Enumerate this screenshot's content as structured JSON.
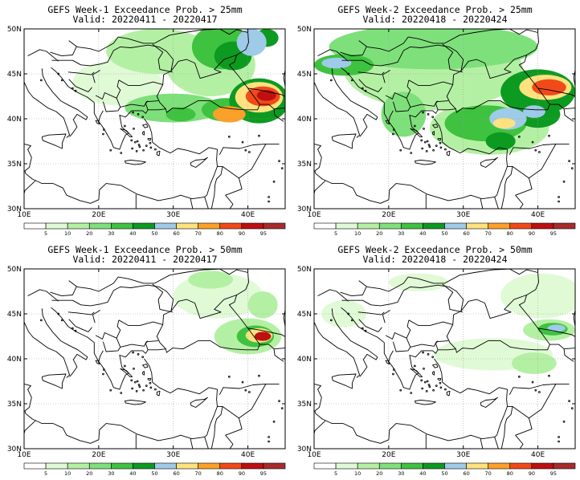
{
  "panels": [
    {
      "id": "w1-25",
      "title": "GEFS Week-1 Exceedance Prob. > 25mm",
      "valid": "Valid: 20220411 - 20220417",
      "blobs": [
        {
          "lon": 31.0,
          "lat": 40.5,
          "rx": 2.0,
          "ry": 0.8,
          "lvl": 4
        },
        {
          "lon": 30.0,
          "lat": 41.2,
          "rx": 6.5,
          "ry": 1.6,
          "lvl": 3
        },
        {
          "lon": 22.5,
          "lat": 44.0,
          "rx": 6.0,
          "ry": 2.5,
          "lvl": 1
        },
        {
          "lon": 28.0,
          "lat": 47.5,
          "rx": 7.0,
          "ry": 2.5,
          "lvl": 2
        },
        {
          "lon": 35.0,
          "lat": 46.0,
          "rx": 6.0,
          "ry": 3.5,
          "lvl": 2
        },
        {
          "lon": 36.5,
          "lat": 48.0,
          "rx": 4.0,
          "ry": 2.5,
          "lvl": 4
        },
        {
          "lon": 38.0,
          "lat": 47.0,
          "rx": 2.5,
          "ry": 1.6,
          "lvl": 5
        },
        {
          "lon": 40.5,
          "lat": 48.5,
          "rx": 2.0,
          "ry": 1.5,
          "lvl": 6
        },
        {
          "lon": 42.5,
          "lat": 49.0,
          "rx": 1.6,
          "ry": 1.0,
          "lvl": 5
        },
        {
          "lon": 37.0,
          "lat": 41.0,
          "rx": 3.2,
          "ry": 1.3,
          "lvl": 4
        },
        {
          "lon": 37.5,
          "lat": 40.5,
          "rx": 2.2,
          "ry": 0.9,
          "lvl": 8
        },
        {
          "lon": 41.5,
          "lat": 42.0,
          "rx": 4.0,
          "ry": 2.5,
          "lvl": 5
        },
        {
          "lon": 41.5,
          "lat": 42.4,
          "rx": 3.2,
          "ry": 1.7,
          "lvl": 7
        },
        {
          "lon": 42.0,
          "lat": 42.5,
          "rx": 2.3,
          "ry": 1.1,
          "lvl": 9
        },
        {
          "lon": 42.5,
          "lat": 42.6,
          "rx": 1.3,
          "ry": 0.6,
          "lvl": 10
        }
      ]
    },
    {
      "id": "w2-25",
      "title": "GEFS Week-2 Exceedance Prob. > 25mm",
      "valid": "Valid: 20220418 - 20220424",
      "blobs": [
        {
          "lon": 26.0,
          "lat": 45.5,
          "rx": 12.0,
          "ry": 4.5,
          "lvl": 2
        },
        {
          "lon": 26.0,
          "lat": 48.0,
          "rx": 14.0,
          "ry": 2.5,
          "lvl": 3
        },
        {
          "lon": 14.0,
          "lat": 46.0,
          "rx": 4.0,
          "ry": 1.2,
          "lvl": 4
        },
        {
          "lon": 13.0,
          "lat": 46.2,
          "rx": 2.0,
          "ry": 0.6,
          "lvl": 6
        },
        {
          "lon": 22.0,
          "lat": 40.5,
          "rx": 3.0,
          "ry": 2.5,
          "lvl": 3
        },
        {
          "lon": 33.5,
          "lat": 39.0,
          "rx": 8.0,
          "ry": 3.0,
          "lvl": 2
        },
        {
          "lon": 33.0,
          "lat": 39.5,
          "rx": 5.5,
          "ry": 2.0,
          "lvl": 4
        },
        {
          "lon": 36.0,
          "lat": 40.0,
          "rx": 2.5,
          "ry": 1.2,
          "lvl": 6
        },
        {
          "lon": 35.5,
          "lat": 39.5,
          "rx": 1.5,
          "ry": 0.6,
          "lvl": 7
        },
        {
          "lon": 35.0,
          "lat": 37.5,
          "rx": 2.0,
          "ry": 1.0,
          "lvl": 5
        },
        {
          "lon": 40.0,
          "lat": 43.0,
          "rx": 5.0,
          "ry": 2.5,
          "lvl": 5
        },
        {
          "lon": 41.0,
          "lat": 43.5,
          "rx": 3.5,
          "ry": 1.4,
          "lvl": 7
        },
        {
          "lon": 41.5,
          "lat": 43.5,
          "rx": 2.3,
          "ry": 0.9,
          "lvl": 9
        },
        {
          "lon": 40.0,
          "lat": 40.5,
          "rx": 3.0,
          "ry": 1.5,
          "lvl": 5
        },
        {
          "lon": 39.5,
          "lat": 40.8,
          "rx": 1.5,
          "ry": 0.7,
          "lvl": 6
        }
      ]
    },
    {
      "id": "w1-50",
      "title": "GEFS Week-1 Exceedance Prob. > 50mm",
      "valid": "Valid: 20220411 - 20220417",
      "blobs": [
        {
          "lon": 36.0,
          "lat": 47.0,
          "rx": 6.0,
          "ry": 2.5,
          "lvl": 1
        },
        {
          "lon": 35.0,
          "lat": 48.8,
          "rx": 3.0,
          "ry": 1.0,
          "lvl": 2
        },
        {
          "lon": 42.0,
          "lat": 46.0,
          "rx": 2.0,
          "ry": 1.5,
          "lvl": 2
        },
        {
          "lon": 40.0,
          "lat": 42.5,
          "rx": 4.5,
          "ry": 2.0,
          "lvl": 2
        },
        {
          "lon": 41.0,
          "lat": 42.5,
          "rx": 2.5,
          "ry": 1.2,
          "lvl": 4
        },
        {
          "lon": 41.5,
          "lat": 42.6,
          "rx": 1.8,
          "ry": 0.8,
          "lvl": 7
        },
        {
          "lon": 42.0,
          "lat": 42.5,
          "rx": 1.1,
          "ry": 0.5,
          "lvl": 10
        }
      ]
    },
    {
      "id": "w2-50",
      "title": "GEFS Week-2 Exceedance Prob. > 50mm",
      "valid": "Valid: 20220418 - 20220424",
      "blobs": [
        {
          "lon": 14.0,
          "lat": 45.0,
          "rx": 3.0,
          "ry": 1.5,
          "lvl": 1
        },
        {
          "lon": 24.0,
          "lat": 48.5,
          "rx": 4.0,
          "ry": 1.0,
          "lvl": 1
        },
        {
          "lon": 40.5,
          "lat": 47.0,
          "rx": 5.5,
          "ry": 2.5,
          "lvl": 1
        },
        {
          "lon": 34.0,
          "lat": 40.5,
          "rx": 8.0,
          "ry": 1.8,
          "lvl": 1
        },
        {
          "lon": 39.5,
          "lat": 39.5,
          "rx": 3.0,
          "ry": 1.2,
          "lvl": 2
        },
        {
          "lon": 41.5,
          "lat": 43.2,
          "rx": 3.5,
          "ry": 1.2,
          "lvl": 2
        },
        {
          "lon": 42.0,
          "lat": 43.3,
          "rx": 2.0,
          "ry": 0.7,
          "lvl": 4
        },
        {
          "lon": 42.5,
          "lat": 43.4,
          "rx": 1.2,
          "ry": 0.4,
          "lvl": 6
        }
      ]
    }
  ],
  "axes": {
    "lon_range": [
      10,
      45
    ],
    "lat_range": [
      30,
      50
    ],
    "x_ticks": [
      "10E",
      "20E",
      "30E",
      "40E"
    ],
    "x_tick_lons": [
      10,
      20,
      30,
      40
    ],
    "y_ticks": [
      "30N",
      "35N",
      "40N",
      "45N",
      "50N"
    ],
    "y_tick_lats": [
      30,
      35,
      40,
      45,
      50
    ],
    "grid": "dotted"
  },
  "colorbar": {
    "labels": [
      "5",
      "10",
      "20",
      "30",
      "40",
      "50",
      "60",
      "70",
      "80",
      "90",
      "95"
    ],
    "colors": [
      "#ffffff",
      "#e0fad6",
      "#b4f0a4",
      "#7ee07a",
      "#3fc23f",
      "#0d9a20",
      "#9ecbe8",
      "#fde27f",
      "#fba028",
      "#f04a18",
      "#be1010",
      "#a82b2b"
    ]
  }
}
